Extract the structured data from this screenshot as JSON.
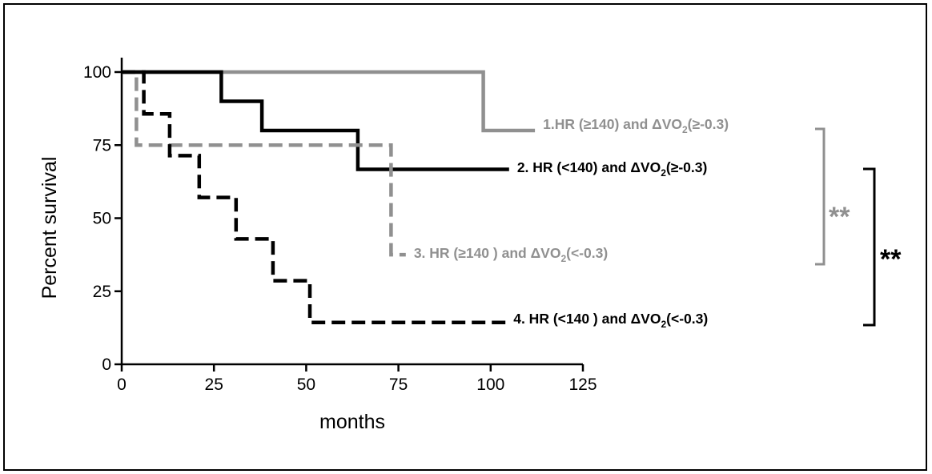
{
  "chart_data": {
    "type": "line",
    "step": true,
    "title": "",
    "xlabel": "months",
    "ylabel": "Percent survival",
    "xlim": [
      0,
      125
    ],
    "ylim": [
      0,
      100
    ],
    "xticks": [
      0,
      25,
      50,
      75,
      100,
      125
    ],
    "yticks": [
      0,
      25,
      50,
      75,
      100
    ],
    "grid": false,
    "series": [
      {
        "name": "1.HR (≥140) and ΔVO₂(≥-0.3)",
        "label_parts": {
          "before": "1.HR (≥140) and ΔVO",
          "sub": "2",
          "after": "(≥-0.3)"
        },
        "color": "#909090",
        "dash": "solid",
        "x": [
          0,
          98,
          98,
          112
        ],
        "y": [
          100,
          100,
          80,
          80
        ]
      },
      {
        "name": "2. HR (<140) and ΔVO₂(≥-0.3)",
        "label_parts": {
          "before": "2. HR (<140) and ΔVO",
          "sub": "2",
          "after": "(≥-0.3)"
        },
        "color": "#000000",
        "dash": "solid",
        "x": [
          0,
          27,
          27,
          38,
          38,
          64,
          64,
          105
        ],
        "y": [
          100,
          100,
          90,
          90,
          80,
          80,
          66.7,
          66.7
        ]
      },
      {
        "name": "3. HR (≥140 ) and ΔVO₂(<-0.3)",
        "label_parts": {
          "before": "3. HR (≥140 ) and ΔVO",
          "sub": "2",
          "after": "(<-0.3)"
        },
        "color": "#909090",
        "dash": "dashed",
        "x": [
          0,
          4,
          4,
          73,
          73,
          77
        ],
        "y": [
          100,
          100,
          75,
          75,
          37.5,
          37.5
        ]
      },
      {
        "name": "4. HR (<140 ) and ΔVO₂(<-0.3)",
        "label_parts": {
          "before": "4. HR (<140 ) and ΔVO",
          "sub": "2",
          "after": "(<-0.3)"
        },
        "color": "#000000",
        "dash": "dashed",
        "x": [
          0,
          6,
          6,
          13,
          13,
          21,
          21,
          31,
          31,
          41,
          41,
          51,
          51,
          104
        ],
        "y": [
          100,
          100,
          85.7,
          85.7,
          71.4,
          71.4,
          57.1,
          57.1,
          42.9,
          42.9,
          28.6,
          28.6,
          14.3,
          14.3
        ]
      }
    ],
    "annotations": [
      {
        "text": "**",
        "color": "#909090",
        "connects": [
          "1.HR (≥140) and ΔVO₂(≥-0.3)",
          "3. HR (≥140 ) and ΔVO₂(<-0.3)"
        ]
      },
      {
        "text": "**",
        "color": "#000000",
        "connects": [
          "2. HR (<140) and ΔVO₂(≥-0.3)",
          "4. HR (<140 ) and ΔVO₂(<-0.3)"
        ]
      }
    ]
  }
}
